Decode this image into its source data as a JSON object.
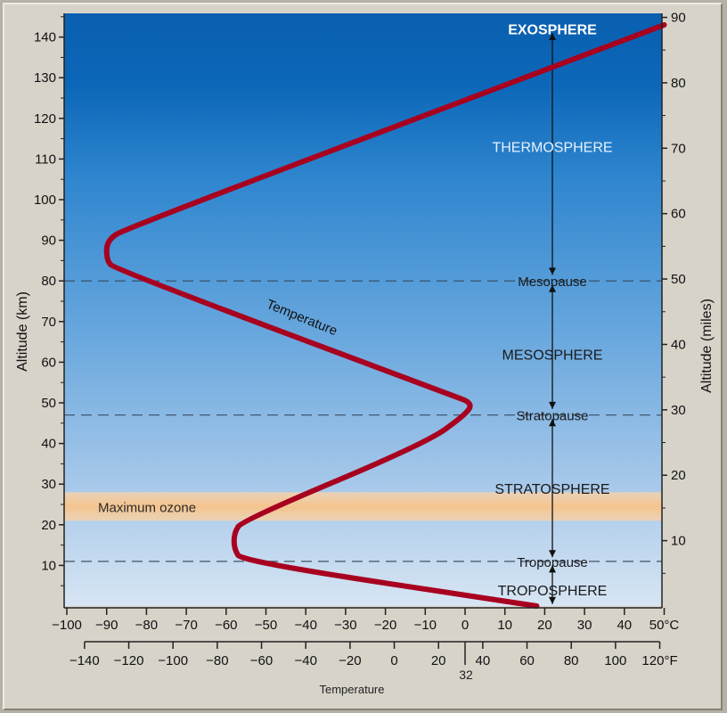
{
  "chart_data": {
    "type": "line",
    "xlabel": "Temperature",
    "ylabel_left": "Altitude (km)",
    "ylabel_right": "Altitude (miles)",
    "x_range_c": [
      -100,
      50
    ],
    "y_range_km": [
      0,
      145
    ],
    "x_ticks_c": [
      "−100",
      "−90",
      "−80",
      "−70",
      "−60",
      "−50",
      "−40",
      "−30",
      "−20",
      "−10",
      "0",
      "10",
      "20",
      "30",
      "40",
      "50°C"
    ],
    "x_ticks_f": [
      "−140",
      "−120",
      "−100",
      "−80",
      "−60",
      "−40",
      "−20",
      "0",
      "20",
      "40",
      "60",
      "80",
      "100",
      "120°F"
    ],
    "x_tick_32": "32",
    "y_ticks_km": [
      "10",
      "20",
      "30",
      "40",
      "50",
      "60",
      "70",
      "80",
      "90",
      "100",
      "110",
      "120",
      "130",
      "140"
    ],
    "y_ticks_miles": [
      "10",
      "20",
      "30",
      "40",
      "50",
      "60",
      "70",
      "80",
      "90"
    ],
    "series": [
      {
        "name": "Temperature",
        "color": "#a8001f",
        "points": [
          [
            18,
            0
          ],
          [
            -56,
            11
          ],
          [
            -58,
            14
          ],
          [
            -58,
            18
          ],
          [
            -56,
            21
          ],
          [
            -10,
            40
          ],
          [
            0,
            47
          ],
          [
            2,
            50
          ],
          [
            -4,
            52
          ],
          [
            -88,
            83
          ],
          [
            -90,
            85
          ],
          [
            -90,
            90
          ],
          [
            -85,
            93
          ],
          [
            50,
            143
          ]
        ]
      }
    ],
    "layers": [
      {
        "name": "EXOSPHERE",
        "altitude_km": 142
      },
      {
        "name": "THERMOSPHERE",
        "altitude_km": 113
      },
      {
        "name": "Mesopause",
        "altitude_km": 80,
        "boundary": true
      },
      {
        "name": "MESOSPHERE",
        "altitude_km": 62
      },
      {
        "name": "Stratopause",
        "altitude_km": 47,
        "boundary": true
      },
      {
        "name": "STRATOSPHERE",
        "altitude_km": 29
      },
      {
        "name": "Tropopause",
        "altitude_km": 11,
        "boundary": true
      },
      {
        "name": "TROPOSPHERE",
        "altitude_km": 4
      }
    ],
    "ozone_band": {
      "label": "Maximum ozone",
      "from_km": 21,
      "to_km": 28,
      "color": "#f5c48e"
    },
    "colors": {
      "sky_top": "#0a5fb0",
      "sky_bottom": "#d7e5f3",
      "curve": "#a8001f"
    }
  }
}
